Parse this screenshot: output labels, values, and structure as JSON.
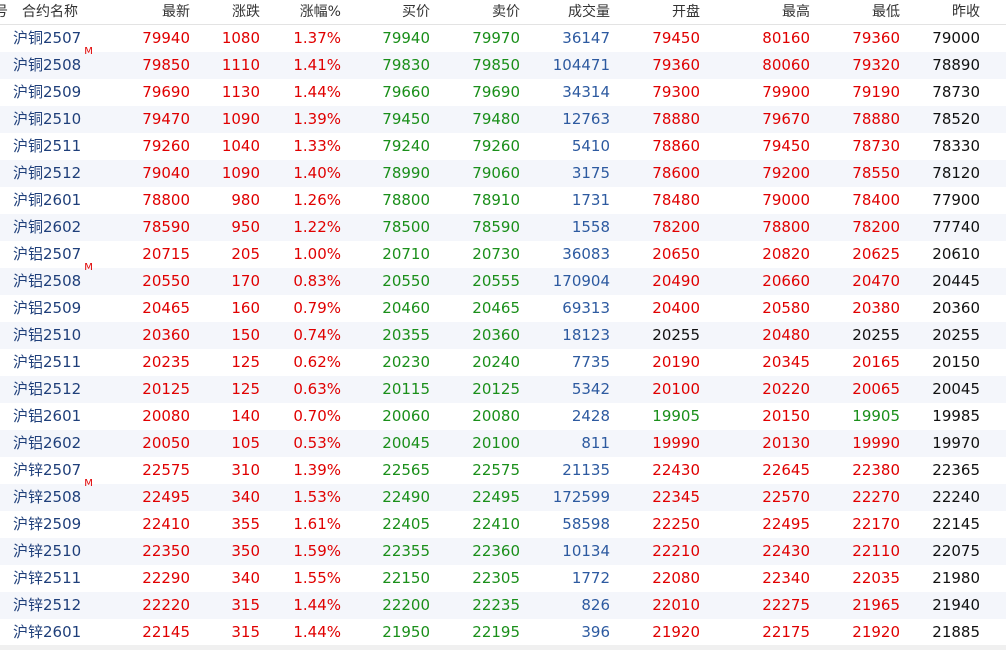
{
  "colors": {
    "up": "#e00000",
    "down": "#1a8f1a",
    "neutral": "#111111",
    "volume": "#2d5aa0",
    "name": "#1f3f7a"
  },
  "header": {
    "idx": "号",
    "name": "合约名称",
    "last": "最新",
    "chg": "涨跌",
    "pct": "涨幅%",
    "bid": "买价",
    "ask": "卖价",
    "vol": "成交量",
    "open": "开盘",
    "high": "最高",
    "low": "最低",
    "prev": "昨收"
  },
  "rows": [
    {
      "name": "沪铜2507",
      "mark": "",
      "last": "79940",
      "chg": "1080",
      "pct": "1.37%",
      "bid": "79940",
      "ask": "79970",
      "vol": "36147",
      "open": "79450",
      "high": "80160",
      "low": "79360",
      "prev": "79000"
    },
    {
      "name": "沪铜2508",
      "mark": "M",
      "last": "79850",
      "chg": "1110",
      "pct": "1.41%",
      "bid": "79830",
      "ask": "79850",
      "vol": "104471",
      "open": "79360",
      "high": "80060",
      "low": "79320",
      "prev": "78890"
    },
    {
      "name": "沪铜2509",
      "mark": "",
      "last": "79690",
      "chg": "1130",
      "pct": "1.44%",
      "bid": "79660",
      "ask": "79690",
      "vol": "34314",
      "open": "79300",
      "high": "79900",
      "low": "79190",
      "prev": "78730"
    },
    {
      "name": "沪铜2510",
      "mark": "",
      "last": "79470",
      "chg": "1090",
      "pct": "1.39%",
      "bid": "79450",
      "ask": "79480",
      "vol": "12763",
      "open": "78880",
      "high": "79670",
      "low": "78880",
      "prev": "78520"
    },
    {
      "name": "沪铜2511",
      "mark": "",
      "last": "79260",
      "chg": "1040",
      "pct": "1.33%",
      "bid": "79240",
      "ask": "79260",
      "vol": "5410",
      "open": "78860",
      "high": "79450",
      "low": "78730",
      "prev": "78330"
    },
    {
      "name": "沪铜2512",
      "mark": "",
      "last": "79040",
      "chg": "1090",
      "pct": "1.40%",
      "bid": "78990",
      "ask": "79060",
      "vol": "3175",
      "open": "78600",
      "high": "79200",
      "low": "78550",
      "prev": "78120"
    },
    {
      "name": "沪铜2601",
      "mark": "",
      "last": "78800",
      "chg": "980",
      "pct": "1.26%",
      "bid": "78800",
      "ask": "78910",
      "vol": "1731",
      "open": "78480",
      "high": "79000",
      "low": "78400",
      "prev": "77900"
    },
    {
      "name": "沪铜2602",
      "mark": "",
      "last": "78590",
      "chg": "950",
      "pct": "1.22%",
      "bid": "78500",
      "ask": "78590",
      "vol": "1558",
      "open": "78200",
      "high": "78800",
      "low": "78200",
      "prev": "77740"
    },
    {
      "name": "沪铝2507",
      "mark": "",
      "last": "20715",
      "chg": "205",
      "pct": "1.00%",
      "bid": "20710",
      "ask": "20730",
      "vol": "36083",
      "open": "20650",
      "high": "20820",
      "low": "20625",
      "prev": "20610"
    },
    {
      "name": "沪铝2508",
      "mark": "M",
      "last": "20550",
      "chg": "170",
      "pct": "0.83%",
      "bid": "20550",
      "ask": "20555",
      "vol": "170904",
      "open": "20490",
      "high": "20660",
      "low": "20470",
      "prev": "20445"
    },
    {
      "name": "沪铝2509",
      "mark": "",
      "last": "20465",
      "chg": "160",
      "pct": "0.79%",
      "bid": "20460",
      "ask": "20465",
      "vol": "69313",
      "open": "20400",
      "high": "20580",
      "low": "20380",
      "prev": "20360"
    },
    {
      "name": "沪铝2510",
      "mark": "",
      "last": "20360",
      "chg": "150",
      "pct": "0.74%",
      "bid": "20355",
      "ask": "20360",
      "vol": "18123",
      "open": "20255",
      "high": "20480",
      "low": "20255",
      "prev": "20255"
    },
    {
      "name": "沪铝2511",
      "mark": "",
      "last": "20235",
      "chg": "125",
      "pct": "0.62%",
      "bid": "20230",
      "ask": "20240",
      "vol": "7735",
      "open": "20190",
      "high": "20345",
      "low": "20165",
      "prev": "20150"
    },
    {
      "name": "沪铝2512",
      "mark": "",
      "last": "20125",
      "chg": "125",
      "pct": "0.63%",
      "bid": "20115",
      "ask": "20125",
      "vol": "5342",
      "open": "20100",
      "high": "20220",
      "low": "20065",
      "prev": "20045"
    },
    {
      "name": "沪铝2601",
      "mark": "",
      "last": "20080",
      "chg": "140",
      "pct": "0.70%",
      "bid": "20060",
      "ask": "20080",
      "vol": "2428",
      "open": "19905",
      "high": "20150",
      "low": "19905",
      "prev": "19985"
    },
    {
      "name": "沪铝2602",
      "mark": "",
      "last": "20050",
      "chg": "105",
      "pct": "0.53%",
      "bid": "20045",
      "ask": "20100",
      "vol": "811",
      "open": "19990",
      "high": "20130",
      "low": "19990",
      "prev": "19970"
    },
    {
      "name": "沪锌2507",
      "mark": "",
      "last": "22575",
      "chg": "310",
      "pct": "1.39%",
      "bid": "22565",
      "ask": "22575",
      "vol": "21135",
      "open": "22430",
      "high": "22645",
      "low": "22380",
      "prev": "22365"
    },
    {
      "name": "沪锌2508",
      "mark": "M",
      "last": "22495",
      "chg": "340",
      "pct": "1.53%",
      "bid": "22490",
      "ask": "22495",
      "vol": "172599",
      "open": "22345",
      "high": "22570",
      "low": "22270",
      "prev": "22240"
    },
    {
      "name": "沪锌2509",
      "mark": "",
      "last": "22410",
      "chg": "355",
      "pct": "1.61%",
      "bid": "22405",
      "ask": "22410",
      "vol": "58598",
      "open": "22250",
      "high": "22495",
      "low": "22170",
      "prev": "22145"
    },
    {
      "name": "沪锌2510",
      "mark": "",
      "last": "22350",
      "chg": "350",
      "pct": "1.59%",
      "bid": "22355",
      "ask": "22360",
      "vol": "10134",
      "open": "22210",
      "high": "22430",
      "low": "22110",
      "prev": "22075"
    },
    {
      "name": "沪锌2511",
      "mark": "",
      "last": "22290",
      "chg": "340",
      "pct": "1.55%",
      "bid": "22150",
      "ask": "22305",
      "vol": "1772",
      "open": "22080",
      "high": "22340",
      "low": "22035",
      "prev": "21980"
    },
    {
      "name": "沪锌2512",
      "mark": "",
      "last": "22220",
      "chg": "315",
      "pct": "1.44%",
      "bid": "22200",
      "ask": "22235",
      "vol": "826",
      "open": "22010",
      "high": "22275",
      "low": "21965",
      "prev": "21940"
    },
    {
      "name": "沪锌2601",
      "mark": "",
      "last": "22145",
      "chg": "315",
      "pct": "1.44%",
      "bid": "21950",
      "ask": "22195",
      "vol": "396",
      "open": "21920",
      "high": "22175",
      "low": "21920",
      "prev": "21885"
    }
  ]
}
